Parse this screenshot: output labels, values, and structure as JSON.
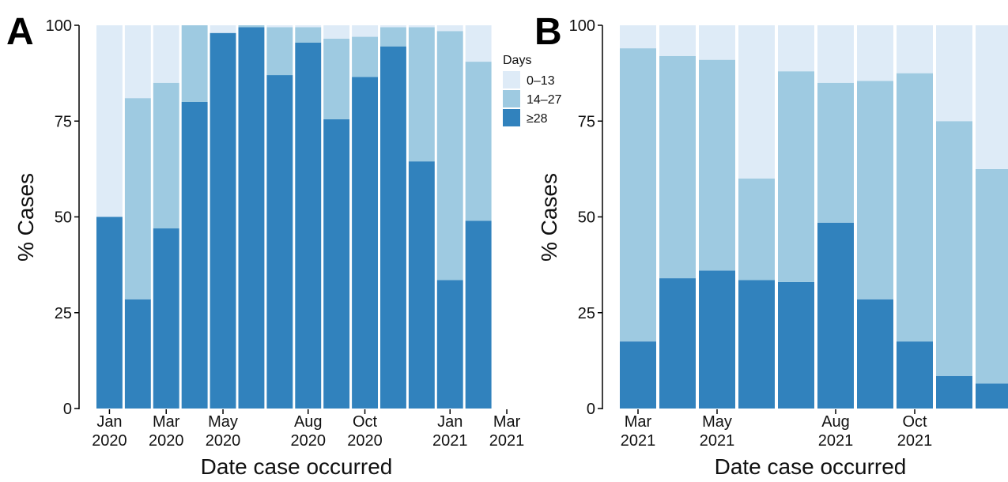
{
  "legend": {
    "title": "Days",
    "items": [
      {
        "label": "0–13",
        "key": "d0_13"
      },
      {
        "label": "14–27",
        "key": "d14_27"
      },
      {
        "label": "≥28",
        "key": "d28"
      }
    ]
  },
  "colors": {
    "d0_13": "#deebf7",
    "d14_27": "#9ecae1",
    "d28": "#3182bd",
    "axis": "#000000"
  },
  "chart_data": [
    {
      "type": "bar",
      "stacked": true,
      "panel": "A",
      "xlabel": "Date case occurred",
      "ylabel": "% Cases",
      "ylim": [
        0,
        100
      ],
      "yticks": [
        0,
        25,
        50,
        75,
        100
      ],
      "x_tick_labels": [
        {
          "line1": "Jan",
          "line2": "2020",
          "at": 0
        },
        {
          "line1": "Mar",
          "line2": "2020",
          "at": 2
        },
        {
          "line1": "May",
          "line2": "2020",
          "at": 4
        },
        {
          "line1": "Aug",
          "line2": "2020",
          "at": 7
        },
        {
          "line1": "Oct",
          "line2": "2020",
          "at": 9
        },
        {
          "line1": "Jan",
          "line2": "2021",
          "at": 12
        },
        {
          "line1": "Mar",
          "line2": "2021",
          "at": 14
        }
      ],
      "categories": [
        "Jan 2020",
        "Feb 2020",
        "Mar 2020",
        "Apr 2020",
        "May 2020",
        "Jun 2020",
        "Jul 2020",
        "Aug 2020",
        "Sep 2020",
        "Oct 2020",
        "Nov 2020",
        "Dec 2020",
        "Jan 2021",
        "Feb 2021",
        "Mar 2021"
      ],
      "series": [
        {
          "name": "≥28",
          "key": "d28",
          "values": [
            50,
            28.5,
            47,
            80,
            98,
            99.5,
            87,
            95.5,
            75.5,
            86.5,
            94.5,
            64.5,
            33.5,
            49,
            0
          ]
        },
        {
          "name": "14–27",
          "key": "d14_27",
          "values": [
            0,
            52.5,
            38,
            20,
            0,
            0.5,
            12.5,
            4,
            21,
            10.5,
            5,
            35,
            65,
            41.5,
            0
          ]
        },
        {
          "name": "0–13",
          "key": "d0_13",
          "values": [
            50,
            19,
            15,
            0,
            2,
            0,
            0.5,
            0.5,
            3.5,
            3,
            0.5,
            0.5,
            1.5,
            9.5,
            0
          ]
        }
      ]
    },
    {
      "type": "bar",
      "stacked": true,
      "panel": "B",
      "xlabel": "Date case occurred",
      "ylabel": "% Cases",
      "ylim": [
        0,
        100
      ],
      "yticks": [
        0,
        25,
        50,
        75,
        100
      ],
      "x_tick_labels": [
        {
          "line1": "Mar",
          "line2": "2021",
          "at": 0
        },
        {
          "line1": "May",
          "line2": "2021",
          "at": 2
        },
        {
          "line1": "Aug",
          "line2": "2021",
          "at": 5
        },
        {
          "line1": "Oct",
          "line2": "2021",
          "at": 7
        }
      ],
      "categories": [
        "Mar 2021",
        "Apr 2021",
        "May 2021",
        "Jun 2021",
        "Jul 2021",
        "Aug 2021",
        "Sep 2021",
        "Oct 2021",
        "Nov 2021",
        "Dec 2021"
      ],
      "series": [
        {
          "name": "≥28",
          "key": "d28",
          "values": [
            17.5,
            34,
            36,
            33.5,
            33,
            48.5,
            28.5,
            17.5,
            8.5,
            6.5
          ]
        },
        {
          "name": "14–27",
          "key": "d14_27",
          "values": [
            76.5,
            58,
            55,
            26.5,
            55,
            36.5,
            57,
            70,
            66.5,
            56
          ]
        },
        {
          "name": "0–13",
          "key": "d0_13",
          "values": [
            6,
            8,
            9,
            40,
            12,
            15,
            14.5,
            12.5,
            25,
            37.5
          ]
        }
      ]
    }
  ]
}
